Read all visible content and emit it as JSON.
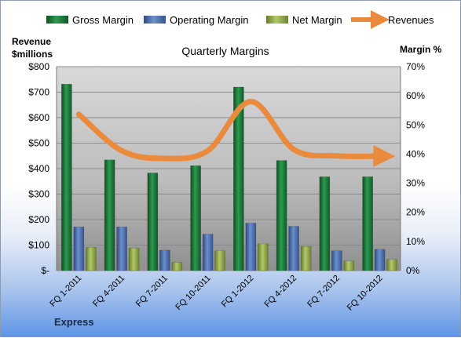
{
  "colors": {
    "gross": "#1f7a3a",
    "operating": "#4a6fb0",
    "net": "#8ea64a",
    "revenues": "#ea8a3c"
  },
  "chart_data": {
    "type": "bar",
    "title": "Quarterly Margins",
    "left_axis_title": [
      "Revenue",
      "$millions"
    ],
    "right_axis_title": "Margin %",
    "footer_label": "Express",
    "categories": [
      "FQ 1-2011",
      "FQ 4-2011",
      "FQ 7-2011",
      "FQ 10-2011",
      "FQ 1-2012",
      "FQ 4-2012",
      "FQ 7-2012",
      "FQ 10-2012"
    ],
    "left_ticks": [
      "$-",
      "$100",
      "$200",
      "$300",
      "$400",
      "$500",
      "$600",
      "$700",
      "$800"
    ],
    "right_ticks": [
      "0%",
      "10%",
      "20%",
      "30%",
      "40%",
      "50%",
      "60%",
      "70%"
    ],
    "ylim_left": [
      0,
      800
    ],
    "ylim_right": [
      0,
      0.7
    ],
    "grid": true,
    "legend_position": "top",
    "series": [
      {
        "name": "Gross Margin",
        "axis": "right",
        "type": "bar",
        "values": [
          0.64,
          0.38,
          0.335,
          0.36,
          0.63,
          0.378,
          0.322,
          0.322
        ]
      },
      {
        "name": "Operating Margin",
        "axis": "right",
        "type": "bar",
        "values": [
          0.15,
          0.15,
          0.07,
          0.125,
          0.163,
          0.152,
          0.068,
          0.073
        ]
      },
      {
        "name": "Net Margin",
        "axis": "right",
        "type": "bar",
        "values": [
          0.08,
          0.077,
          0.028,
          0.068,
          0.092,
          0.083,
          0.033,
          0.038
        ]
      },
      {
        "name": "Revenues",
        "axis": "left",
        "type": "line",
        "values": [
          613,
          470,
          440,
          470,
          663,
          475,
          450,
          449
        ]
      }
    ]
  }
}
